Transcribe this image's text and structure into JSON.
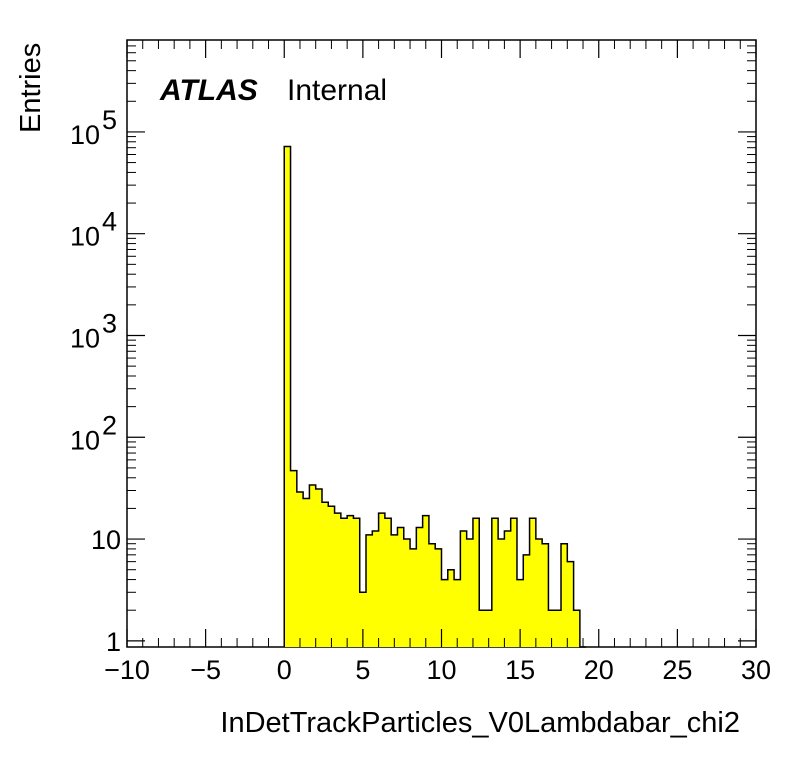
{
  "chart_data": {
    "type": "bar",
    "histogram": true,
    "title": "",
    "xlabel": "InDetTrackParticles_V0Lambdabar_chi2",
    "ylabel": "Entries",
    "label_bold": "ATLAS",
    "label_text": "Internal",
    "xlim": [
      -10,
      30
    ],
    "ylim": [
      0.87,
      800000
    ],
    "log_y": true,
    "fill_color": "#ffff00",
    "line_color": "#000000",
    "x_ticks": [
      -10,
      -5,
      0,
      5,
      10,
      15,
      20,
      25,
      30
    ],
    "x_tick_labels": [
      "−10",
      "−5",
      "0",
      "5",
      "10",
      "15",
      "20",
      "25",
      "30"
    ],
    "y_ticks": [
      {
        "value": 1,
        "base": "1",
        "exp": ""
      },
      {
        "value": 10,
        "base": "10",
        "exp": ""
      },
      {
        "value": 100,
        "base": "10",
        "exp": "2"
      },
      {
        "value": 1000,
        "base": "10",
        "exp": "3"
      },
      {
        "value": 10000,
        "base": "10",
        "exp": "4"
      },
      {
        "value": 100000,
        "base": "10",
        "exp": "5"
      }
    ],
    "bin_width": 0.4,
    "bins_start": 0,
    "values": [
      72000,
      47,
      29,
      25,
      34,
      31,
      23,
      21,
      18,
      16,
      17,
      16,
      3,
      11,
      12,
      18,
      16,
      11,
      13,
      10,
      8,
      13,
      17,
      9,
      8,
      4,
      5,
      4,
      12,
      10,
      16,
      2,
      2,
      16,
      10,
      12,
      16,
      4,
      7,
      16,
      10,
      9,
      2,
      2,
      9,
      6,
      2,
      0
    ]
  }
}
